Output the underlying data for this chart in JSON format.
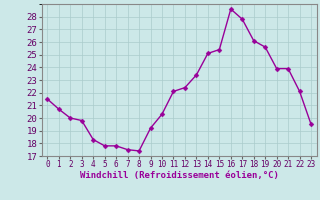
{
  "x": [
    0,
    1,
    2,
    3,
    4,
    5,
    6,
    7,
    8,
    9,
    10,
    11,
    12,
    13,
    14,
    15,
    16,
    17,
    18,
    19,
    20,
    21,
    22,
    23
  ],
  "y": [
    21.5,
    20.7,
    20.0,
    19.8,
    18.3,
    17.8,
    17.8,
    17.5,
    17.4,
    19.2,
    20.3,
    22.1,
    22.4,
    23.4,
    25.1,
    25.4,
    28.6,
    27.8,
    26.1,
    25.6,
    23.9,
    23.9,
    22.1,
    19.5
  ],
  "line_color": "#990099",
  "marker": "D",
  "marker_size": 2.5,
  "bg_color": "#cce8e8",
  "grid_color": "#aacccc",
  "xlabel": "Windchill (Refroidissement éolien,°C)",
  "ylim": [
    17,
    29
  ],
  "xlim": [
    -0.5,
    23.5
  ],
  "yticks": [
    17,
    18,
    19,
    20,
    21,
    22,
    23,
    24,
    25,
    26,
    27,
    28
  ],
  "xticks": [
    0,
    1,
    2,
    3,
    4,
    5,
    6,
    7,
    8,
    9,
    10,
    11,
    12,
    13,
    14,
    15,
    16,
    17,
    18,
    19,
    20,
    21,
    22,
    23
  ],
  "xlabel_fontsize": 6.5,
  "ytick_fontsize": 6.5,
  "xtick_fontsize": 5.5,
  "line_width": 1.0
}
